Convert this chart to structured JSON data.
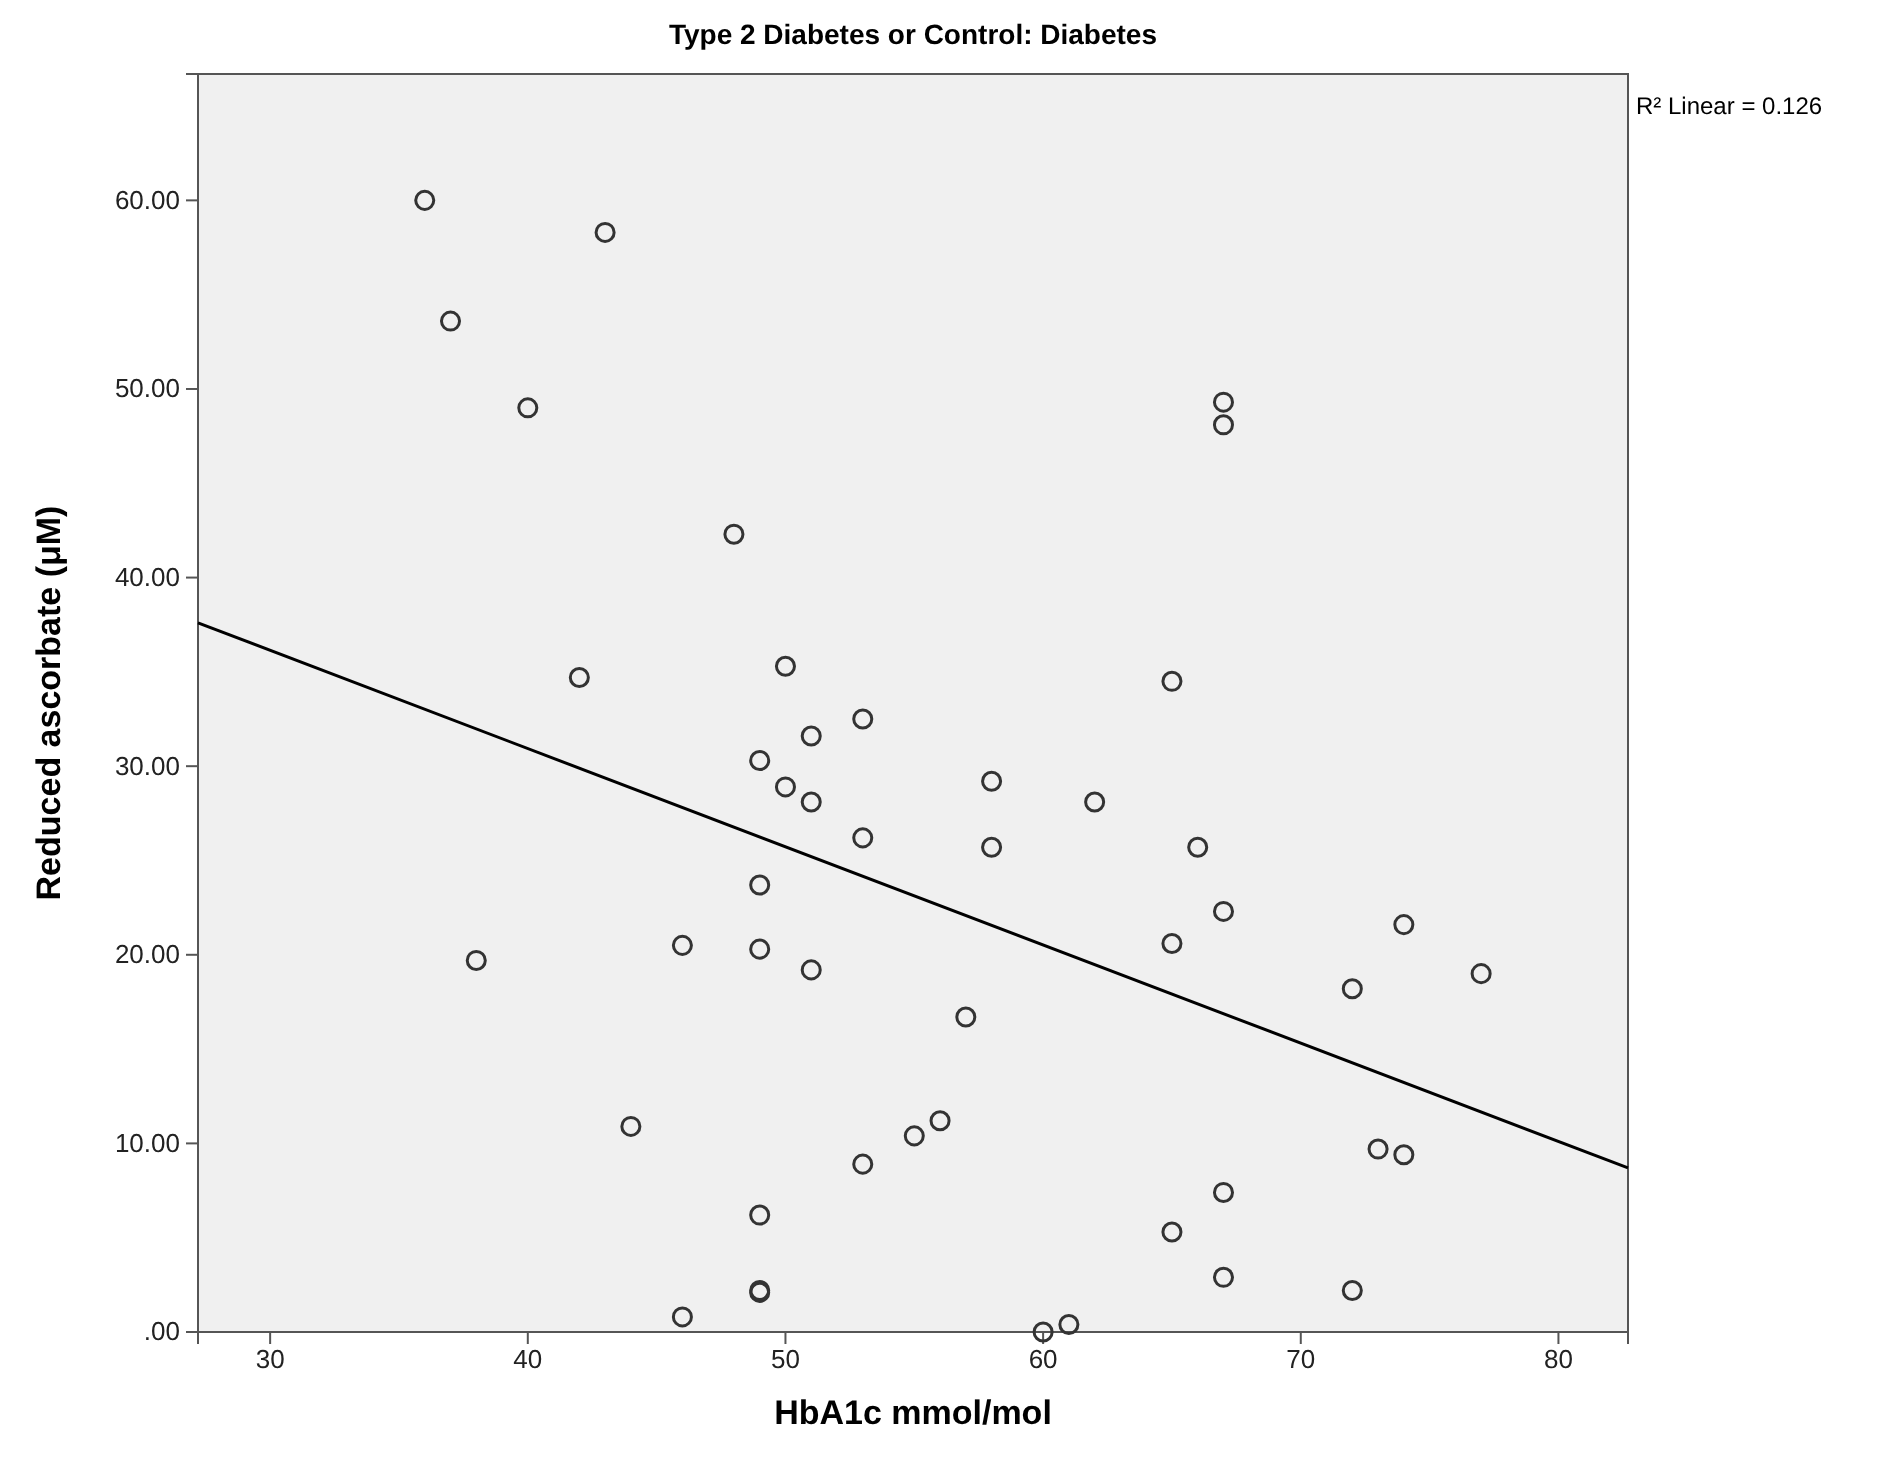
{
  "chart_data": {
    "type": "scatter",
    "title": "Type 2 Diabetes or Control: Diabetes",
    "xlabel": "HbA1c mmol/mol",
    "ylabel": "Reduced ascorbate (μM)",
    "annotations": [
      "R² Linear = 0.126"
    ],
    "xlim": [
      27.2,
      82.7
    ],
    "xticks": [
      30,
      40,
      50,
      60,
      70,
      80
    ],
    "ylim": [
      0,
      66.7
    ],
    "yticks": [
      {
        "value": 0,
        "label": ".00"
      },
      {
        "value": 10,
        "label": "10.00"
      },
      {
        "value": 20,
        "label": "20.00"
      },
      {
        "value": 30,
        "label": "30.00"
      },
      {
        "value": 40,
        "label": "40.00"
      },
      {
        "value": 50,
        "label": "50.00"
      },
      {
        "value": 60,
        "label": "60.00"
      }
    ],
    "grid": false,
    "marker": "circle",
    "series": [
      {
        "type": "scatter",
        "color": "#333333",
        "x": [
          36,
          43,
          37,
          40,
          48,
          42,
          50,
          53,
          51,
          49,
          50,
          51,
          53,
          49,
          46,
          49,
          38,
          51,
          44,
          55,
          56,
          53,
          49,
          49,
          49,
          46,
          58,
          62,
          58,
          66,
          67,
          65,
          74,
          72,
          77,
          57,
          73,
          74,
          67,
          65,
          67,
          72,
          60,
          61,
          67,
          67,
          65
        ],
        "values": [
          60.0,
          58.3,
          53.6,
          49.0,
          42.3,
          34.7,
          35.3,
          32.5,
          31.6,
          30.3,
          28.9,
          28.1,
          26.2,
          23.7,
          20.5,
          20.3,
          19.7,
          19.2,
          10.9,
          10.4,
          11.2,
          8.9,
          6.2,
          2.1,
          2.2,
          0.8,
          29.2,
          28.1,
          25.7,
          25.7,
          22.3,
          20.6,
          21.6,
          18.2,
          19.0,
          16.7,
          9.7,
          9.4,
          7.4,
          5.3,
          2.9,
          2.2,
          0.0,
          0.4,
          49.3,
          48.1,
          34.5
        ]
      },
      {
        "type": "line",
        "color": "#000000",
        "marker": "none",
        "line_style": "solid",
        "x": [
          27.2,
          82.7
        ],
        "values": [
          37.6,
          8.7
        ]
      }
    ]
  }
}
